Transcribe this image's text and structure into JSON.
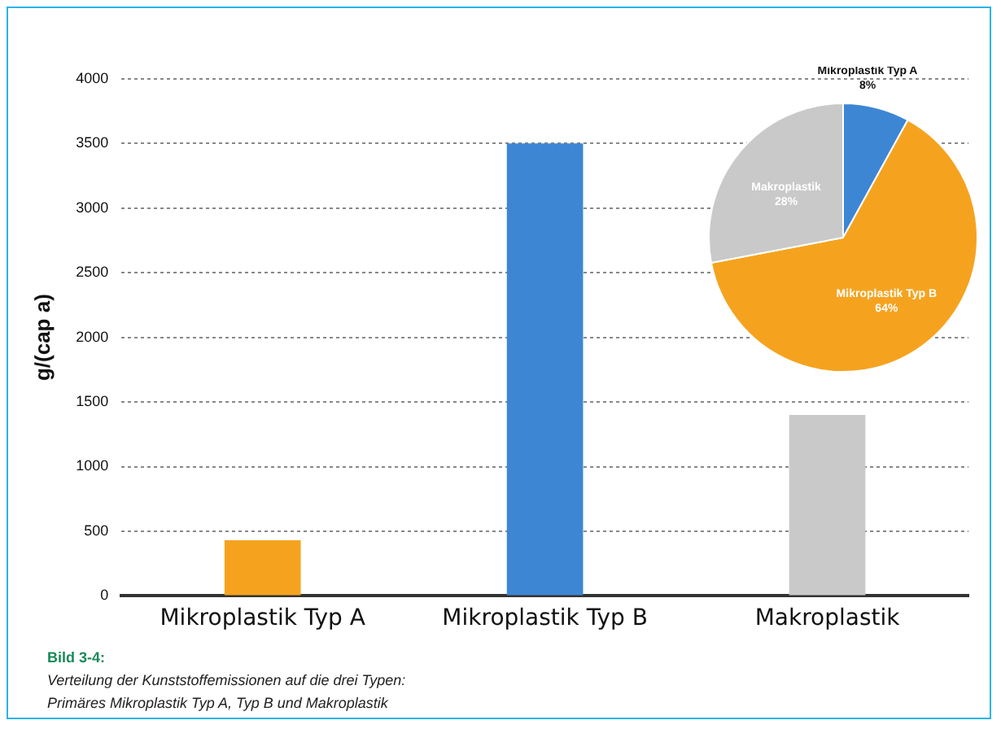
{
  "chart_data": [
    {
      "type": "bar",
      "categories": [
        "Mikroplastik Typ A",
        "Mikroplastik Typ B",
        "Makroplastik"
      ],
      "values": [
        430,
        3500,
        1400
      ],
      "colors": [
        "#f5a31f",
        "#3d86d4",
        "#c9c9c9"
      ],
      "ylim": [
        0,
        4000
      ],
      "yticks": [
        0,
        500,
        1000,
        1500,
        2000,
        2500,
        3000,
        3500,
        4000
      ],
      "grid": "y",
      "ylabel": "g/(cap a)",
      "legend": false,
      "annotations": [
        "Bild 3-4:",
        "Verteilung der Kunststoffemissionen auf die drei Typen:",
        "Primäres Mikroplastik Typ A, Typ B und Makroplastik"
      ]
    },
    {
      "type": "pie",
      "categories": [
        "Mikroplastik Typ A",
        "Mikroplastik Typ B",
        "Makroplastik"
      ],
      "values": [
        8,
        64,
        28
      ],
      "colors": [
        "#3d86d4",
        "#f5a31f",
        "#c9c9c9"
      ],
      "value_labels": [
        "8%",
        "64%",
        "28%"
      ],
      "legend": false
    }
  ]
}
